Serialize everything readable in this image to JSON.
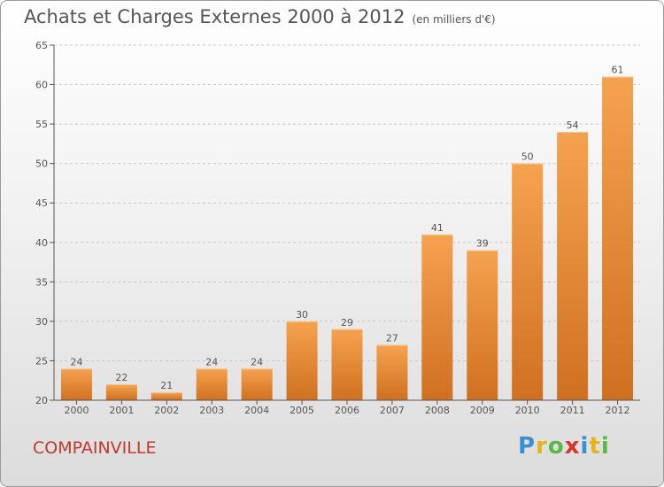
{
  "title": "Achats et Charges Externes 2000 à 2012",
  "subtitle": "(en milliers d'€)",
  "place": "COMPAINVILLE",
  "logo": {
    "letters": [
      "P",
      "r",
      "o",
      "x",
      "i",
      "t",
      "i"
    ],
    "colors": [
      "#3a8fd0",
      "#e8b21c",
      "#58b947",
      "#d9342b",
      "#3a8fd0",
      "#e8b21c",
      "#58b947"
    ]
  },
  "colors": {
    "bar_top": "#f5a24f",
    "bar_bottom": "#cf7020",
    "axis": "#555555",
    "grid": "#c8c8c8"
  },
  "chart_data": {
    "type": "bar",
    "categories": [
      "2000",
      "2001",
      "2002",
      "2003",
      "2004",
      "2005",
      "2006",
      "2007",
      "2008",
      "2009",
      "2010",
      "2011",
      "2012"
    ],
    "values": [
      24,
      22,
      21,
      24,
      24,
      30,
      29,
      27,
      41,
      39,
      50,
      54,
      61
    ],
    "data_labels": [
      "24",
      "22",
      "21",
      "24",
      "24",
      "30",
      "29",
      "27",
      "41",
      "39",
      "50",
      "54",
      "61"
    ],
    "title": "Achats et Charges Externes 2000 à 2012",
    "xlabel": "",
    "ylabel": "",
    "ylim": [
      20,
      65
    ],
    "yticks": [
      20,
      25,
      30,
      35,
      40,
      45,
      50,
      55,
      60,
      65
    ],
    "grid": true,
    "legend": "none"
  }
}
